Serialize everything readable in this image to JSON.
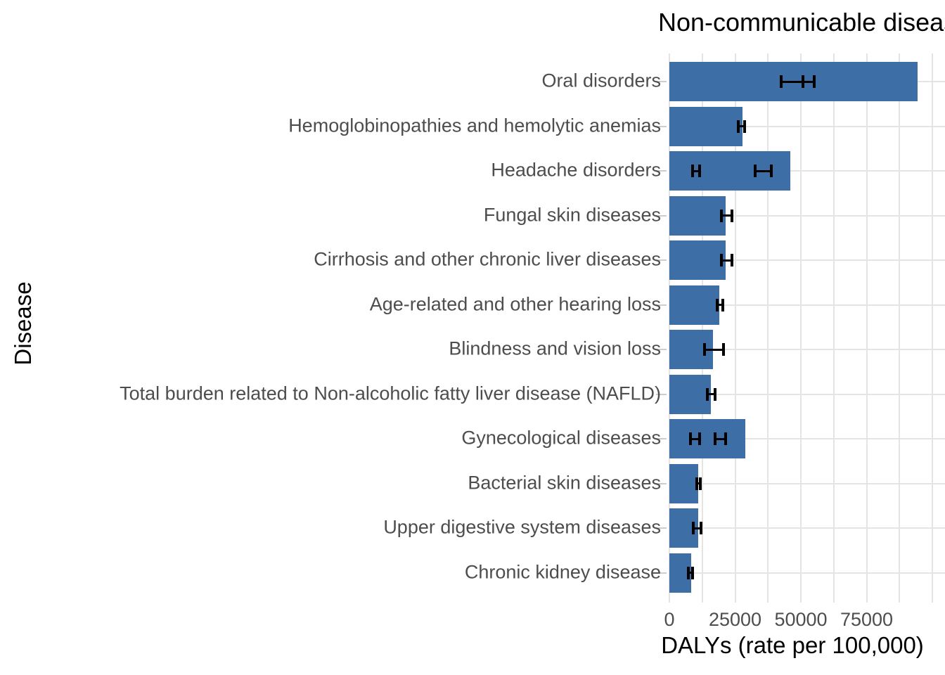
{
  "chart_data": {
    "type": "bar",
    "orientation": "horizontal",
    "title": "Non-communicable diseases",
    "xlabel": "DALYs (rate per 100,000)",
    "ylabel": "Disease",
    "xlim": [
      0,
      104800
    ],
    "x_tick_values": [
      0,
      25000,
      50000,
      75000
    ],
    "x_tick_labels": [
      "0",
      "25000",
      "50000",
      "75000"
    ],
    "x_gridline_values": [
      0,
      12500,
      25000,
      37500,
      50000,
      62500,
      75000,
      87500,
      100000
    ],
    "grid": true,
    "legend_position": "none",
    "categories": [
      "Oral disorders",
      "Hemoglobinopathies and hemolytic anemias",
      "Headache disorders",
      "Fungal skin diseases",
      "Cirrhosis and other chronic liver diseases",
      "Age-related and other hearing loss",
      "Blindness and vision loss",
      "Total burden related to Non-alcoholic fatty liver disease (NAFLD)",
      "Gynecological diseases",
      "Bacterial skin diseases",
      "Upper digestive system diseases",
      "Chronic kidney disease"
    ],
    "values": [
      94500,
      27700,
      45900,
      21500,
      21300,
      19100,
      16450,
      15650,
      29000,
      10850,
      10850,
      8400
    ],
    "error_bars": [
      [
        [
          42400,
          50700
        ],
        [
          50700,
          55000
        ]
      ],
      [
        [
          26100,
          28700
        ]
      ],
      [
        [
          8900,
          11400
        ],
        [
          32500,
          38700
        ]
      ],
      [
        [
          19900,
          23900
        ]
      ],
      [
        [
          19700,
          23700
        ]
      ],
      [
        [
          18300,
          20400
        ]
      ],
      [
        [
          13250,
          20700
        ]
      ],
      [
        [
          14550,
          17250
        ]
      ],
      [
        [
          8000,
          11400
        ],
        [
          17250,
          21400
        ]
      ],
      [
        [
          10300,
          11650
        ]
      ],
      [
        [
          9200,
          12150
        ]
      ],
      [
        [
          7350,
          8950
        ]
      ]
    ]
  },
  "colors": {
    "bar_fill": "#3D6EA5",
    "gridline": "#E4E4E4",
    "axis_tick": "#CDCDCD",
    "error_bar": "#000000",
    "axis_text": "#4D4D4D",
    "title_text": "#000000"
  }
}
